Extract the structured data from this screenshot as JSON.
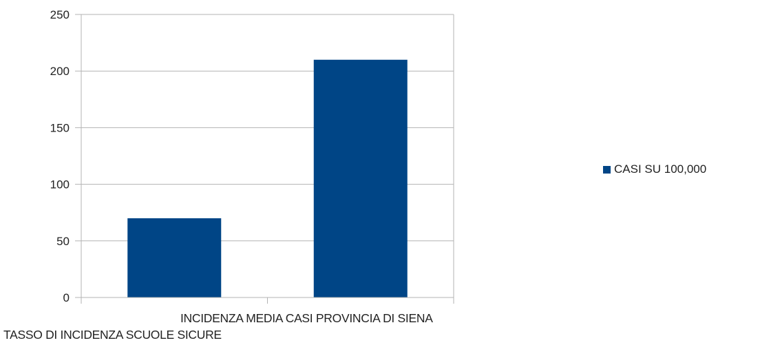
{
  "chart_data": {
    "type": "bar",
    "categories": [
      "TASSO DI INCIDENZA SCUOLE SICURE",
      "INCIDENZA MEDIA CASI PROVINCIA DI SIENA"
    ],
    "series": [
      {
        "name": "CASI SU 100,000",
        "values": [
          70,
          210
        ]
      }
    ],
    "yticks": [
      0,
      50,
      100,
      150,
      200,
      250
    ],
    "ylim": [
      0,
      250
    ],
    "grid": true,
    "legend_position": "right",
    "colors": {
      "bar": "#004586",
      "grid": "#b3b3b3",
      "axis": "#b3b3b3",
      "text": "#222222"
    }
  }
}
